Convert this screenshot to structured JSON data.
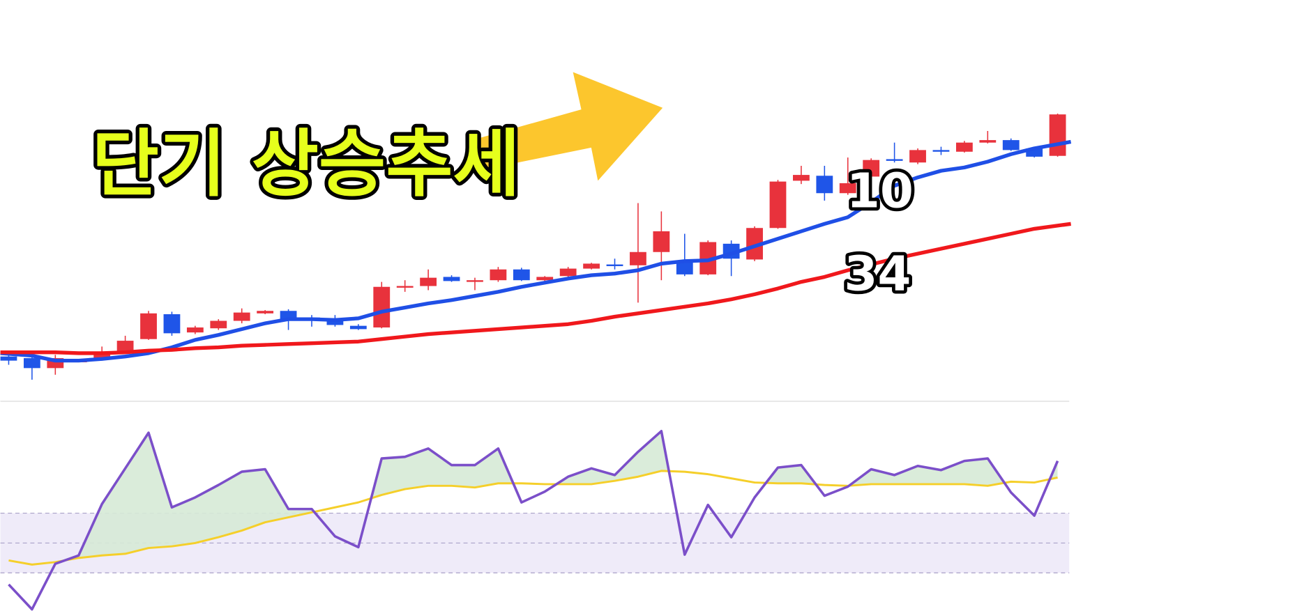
{
  "chart_data": [
    {
      "type": "candlestick",
      "annotation": "단기 상승추세",
      "ylim": [
        0,
        480
      ],
      "up_color": "#e8323c",
      "down_color": "#1f55e8",
      "open": [
        50,
        48,
        36,
        43,
        48,
        56,
        71,
        101,
        79,
        84,
        93,
        102,
        105,
        97,
        95,
        87,
        85,
        133,
        135,
        146,
        140,
        142,
        155,
        142,
        147,
        156,
        161,
        160,
        176,
        164,
        149,
        186,
        167,
        205,
        262,
        268,
        247,
        267,
        288,
        284,
        299,
        297,
        308,
        311,
        301,
        292
      ],
      "high": [
        55,
        55,
        52,
        46,
        62,
        75,
        105,
        104,
        87,
        95,
        108,
        106,
        107,
        100,
        100,
        89,
        140,
        142,
        155,
        148,
        145,
        158,
        157,
        147,
        158,
        163,
        168,
        235,
        225,
        198,
        190,
        190,
        207,
        263,
        280,
        280,
        290,
        289,
        308,
        301,
        303,
        310,
        322,
        313,
        303,
        343
      ],
      "low": [
        40,
        22,
        28,
        43,
        45,
        54,
        70,
        75,
        77,
        82,
        90,
        101,
        82,
        86,
        86,
        82,
        84,
        128,
        130,
        140,
        130,
        140,
        141,
        141,
        146,
        155,
        155,
        115,
        142,
        147,
        148,
        147,
        165,
        204,
        258,
        238,
        245,
        265,
        284,
        282,
        293,
        296,
        307,
        298,
        290,
        291
      ],
      "close": [
        45,
        36,
        48,
        46,
        54,
        69,
        102,
        78,
        85,
        93,
        103,
        105,
        94,
        94,
        88,
        83,
        134,
        135,
        145,
        141,
        142,
        155,
        142,
        146,
        156,
        162,
        159,
        176,
        201,
        149,
        188,
        168,
        205,
        261,
        269,
        247,
        259,
        287,
        286,
        299,
        297,
        308,
        311,
        299,
        291,
        342
      ],
      "lines": [
        {
          "name": "10",
          "color": "#1f4fe6",
          "values": [
            54,
            51,
            45,
            45,
            47,
            50,
            54,
            61,
            70,
            76,
            83,
            90,
            95,
            95,
            94,
            96,
            104,
            109,
            114,
            118,
            123,
            128,
            134,
            139,
            144,
            148,
            150,
            154,
            162,
            165,
            166,
            174,
            183,
            192,
            201,
            210,
            218,
            236,
            256,
            266,
            274,
            278,
            285,
            294,
            301,
            309
          ]
        },
        {
          "name": "34",
          "color": "#f0181c",
          "values": [
            55,
            55,
            55,
            54,
            54,
            55,
            57,
            58,
            60,
            61,
            63,
            64,
            65,
            66,
            67,
            68,
            71,
            74,
            77,
            79,
            81,
            83,
            85,
            87,
            89,
            93,
            98,
            102,
            106,
            110,
            114,
            119,
            125,
            132,
            140,
            146,
            154,
            161,
            168,
            174,
            180,
            186,
            192,
            198,
            204,
            210
          ]
        }
      ]
    },
    {
      "type": "line",
      "ylim": [
        0,
        252
      ],
      "levels": [
        46,
        82,
        118
      ],
      "band_color": "#efebf9",
      "level_color": "#a9a0c8",
      "fill_color": "#d6ead6",
      "series": [
        {
          "color": "#7b4fc9",
          "values": [
            32,
            2,
            57,
            67,
            129,
            172,
            215,
            125,
            137,
            152,
            168,
            171,
            123,
            123,
            90,
            77,
            184,
            186,
            196,
            176,
            176,
            196,
            131,
            144,
            162,
            172,
            164,
            192,
            217,
            68,
            128,
            89,
            137,
            173,
            176,
            139,
            150,
            171,
            164,
            175,
            170,
            181,
            184,
            143,
            115,
            181
          ]
        },
        {
          "color": "#f5cf2a",
          "values": [
            61,
            56,
            59,
            64,
            67,
            69,
            76,
            78,
            82,
            89,
            97,
            107,
            113,
            119,
            125,
            131,
            140,
            147,
            151,
            151,
            149,
            154,
            154,
            153,
            153,
            153,
            157,
            162,
            169,
            168,
            165,
            160,
            155,
            154,
            154,
            152,
            151,
            153,
            153,
            153,
            153,
            153,
            151,
            156,
            155,
            161
          ]
        }
      ]
    }
  ]
}
